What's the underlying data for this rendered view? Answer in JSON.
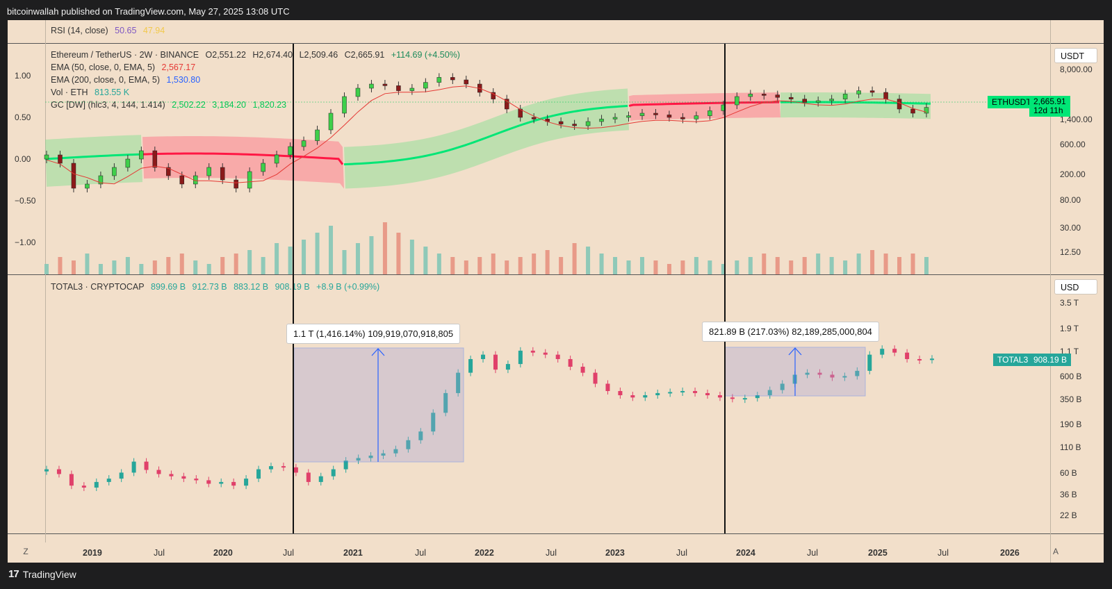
{
  "publisher_line": "bitcoinwallah published on TradingView.com, May 27, 2025 13:08 UTC",
  "footer": {
    "logo_mark": "17",
    "brand": "TradingView"
  },
  "rsi": {
    "label": "RSI (14, close)",
    "v1": "50.65",
    "v2": "47.94",
    "v1_color": "#7e57c2",
    "v2_color": "#f2c94c"
  },
  "eth": {
    "title": "Ethereum / TetherUS · 2W · BINANCE",
    "o": "O2,551.22",
    "h": "H2,674.40",
    "l": "L2,509.46",
    "c": "C2,665.91",
    "chg": "+114.69 (+4.50%)",
    "ema50_label": "EMA (50, close, 0, EMA, 5)",
    "ema50_val": "2,567.17",
    "ema200_label": "EMA (200, close, 0, EMA, 5)",
    "ema200_val": "1,530.80",
    "vol_label": "Vol · ETH",
    "vol_val": "813.55 K",
    "gc_label": "GC [DW] (hlc3, 4, 144, 1.414)",
    "gc_v1": "2,502.22",
    "gc_v2": "3,184.20",
    "gc_v3": "1,820.23",
    "left_axis": [
      "1.00",
      "0.50",
      "0.00",
      "−0.50",
      "−1.00"
    ],
    "unit": "USDT",
    "right_axis": [
      "8,000.00",
      "1,400.00",
      "600.00",
      "200.00",
      "80.00",
      "30.00",
      "12.50"
    ],
    "tag_name": "ETHUSDT",
    "tag_price": "2,665.91",
    "tag_countdown": "12d 11h",
    "tag_color": "#00e676"
  },
  "total3": {
    "title": "TOTAL3 · CRYPTOCAP",
    "o": "899.69 B",
    "h": "912.73 B",
    "l": "883.12 B",
    "c": "908.19 B",
    "chg": "+8.9 B (+0.99%)",
    "unit": "USD",
    "right_axis": [
      "3.5 T",
      "1.9 T",
      "1.1 T",
      "600 B",
      "350 B",
      "190 B",
      "110 B",
      "60 B",
      "36 B",
      "22 B"
    ],
    "tag_name": "TOTAL3",
    "tag_price": "908.19 B",
    "tag_color": "#26a69a",
    "annotation1": "1.1 T (1,416.14%) 109,919,070,918,805",
    "annotation2": "821.89 B (217.03%) 82,189,285,000,804"
  },
  "x_axis": [
    {
      "t": "2019",
      "bold": true
    },
    {
      "t": "Jul",
      "bold": false
    },
    {
      "t": "2020",
      "bold": true
    },
    {
      "t": "Jul",
      "bold": false
    },
    {
      "t": "2021",
      "bold": true
    },
    {
      "t": "Jul",
      "bold": false
    },
    {
      "t": "2022",
      "bold": true
    },
    {
      "t": "Jul",
      "bold": false
    },
    {
      "t": "2023",
      "bold": true
    },
    {
      "t": "Jul",
      "bold": false
    },
    {
      "t": "2024",
      "bold": true
    },
    {
      "t": "Jul",
      "bold": false
    },
    {
      "t": "2025",
      "bold": true
    },
    {
      "t": "Jul",
      "bold": false
    },
    {
      "t": "2026",
      "bold": true
    }
  ],
  "corner_left": "Z",
  "corner_right": "A",
  "colors": {
    "up": "#26a69a",
    "down": "#ef5350",
    "band_green": "#00e676",
    "band_red": "#ff1744",
    "measure": "#2962ff",
    "ema50": "#e53935",
    "ema200": "#2962ff",
    "vol_val": "#26a69a",
    "chg": "#26a69a"
  },
  "eth_series": [
    0.05,
    -0.05,
    -0.35,
    -0.3,
    -0.2,
    -0.1,
    0.0,
    0.1,
    -0.1,
    -0.2,
    -0.3,
    -0.2,
    -0.1,
    -0.25,
    -0.35,
    -0.15,
    -0.05,
    0.05,
    0.15,
    0.22,
    0.35,
    0.55,
    0.75,
    0.85,
    0.9,
    0.88,
    0.82,
    0.85,
    0.92,
    0.98,
    0.95,
    0.9,
    0.8,
    0.72,
    0.6,
    0.5,
    0.48,
    0.45,
    0.42,
    0.4,
    0.45,
    0.48,
    0.5,
    0.52,
    0.55,
    0.53,
    0.5,
    0.48,
    0.52,
    0.58,
    0.65,
    0.75,
    0.78,
    0.77,
    0.74,
    0.72,
    0.68,
    0.7,
    0.72,
    0.78,
    0.82,
    0.8,
    0.72,
    0.6,
    0.55,
    0.62
  ],
  "total3_series": [
    65,
    58,
    44,
    42,
    48,
    52,
    60,
    78,
    64,
    58,
    55,
    52,
    50,
    46,
    48,
    44,
    52,
    65,
    70,
    68,
    60,
    48,
    55,
    65,
    80,
    85,
    90,
    95,
    105,
    130,
    160,
    250,
    400,
    650,
    900,
    1000,
    700,
    800,
    1100,
    1050,
    1000,
    900,
    750,
    650,
    500,
    420,
    380,
    360,
    380,
    400,
    410,
    420,
    400,
    380,
    360,
    350,
    355,
    380,
    430,
    500,
    620,
    650,
    620,
    580,
    600,
    680,
    1000,
    1150,
    1050,
    900,
    880,
    910
  ],
  "eth_volume": [
    3,
    5,
    4,
    6,
    3,
    4,
    5,
    3,
    4,
    5,
    6,
    4,
    3,
    5,
    6,
    7,
    5,
    9,
    8,
    10,
    12,
    14,
    7,
    9,
    11,
    15,
    12,
    10,
    8,
    6,
    5,
    4,
    5,
    6,
    4,
    5,
    6,
    7,
    5,
    9,
    8,
    6,
    5,
    4,
    5,
    4,
    3,
    4,
    5,
    4,
    3,
    4,
    5,
    6,
    5,
    4,
    5,
    6,
    5,
    4,
    6,
    7,
    6,
    5,
    6,
    5
  ]
}
